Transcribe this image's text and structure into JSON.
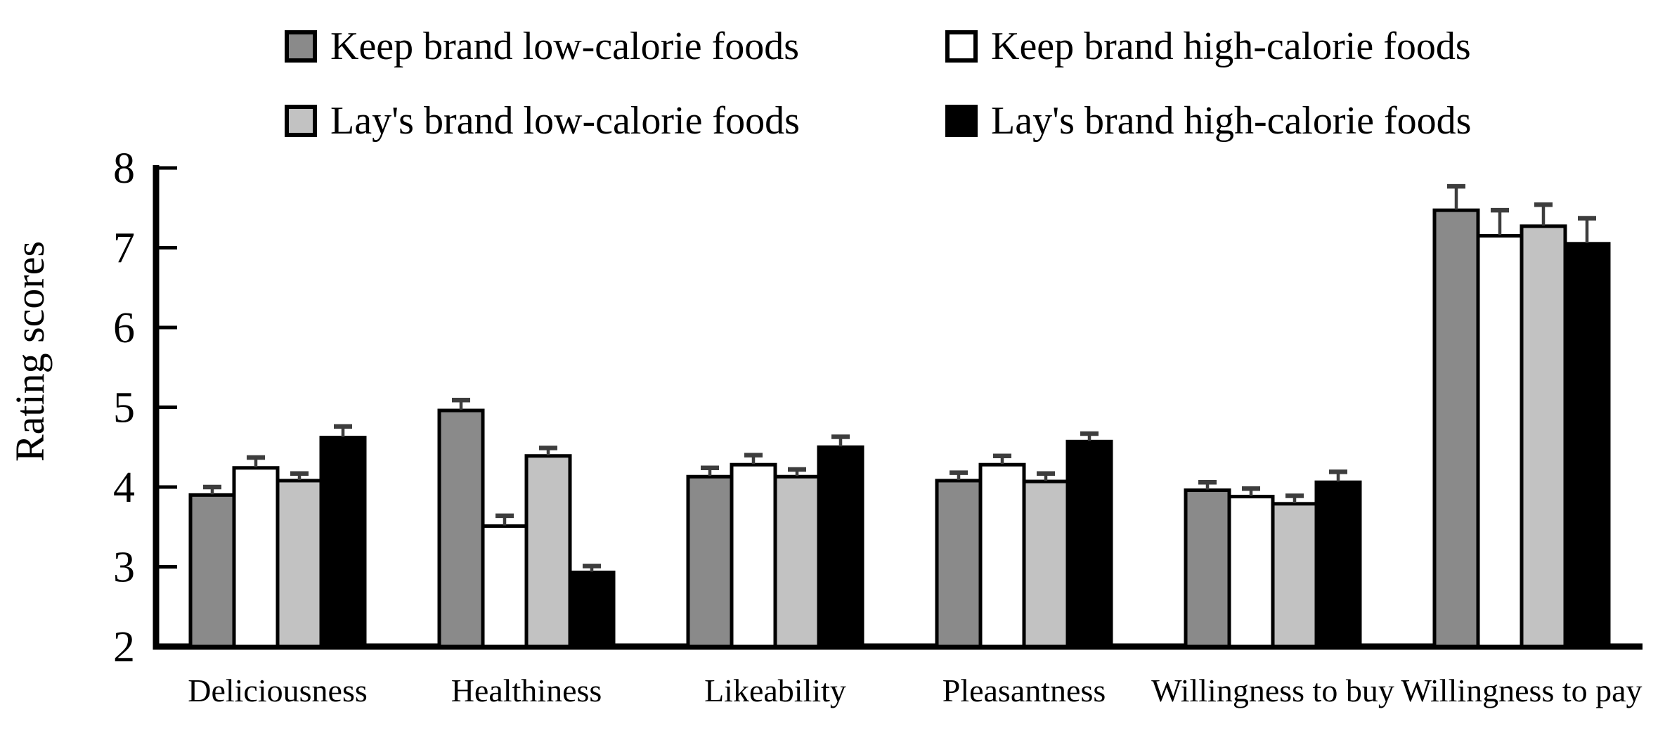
{
  "figure": {
    "background": "#ffffff",
    "axis_color": "#000000",
    "bar_outline_color": "#000000",
    "error_bar_color": "#3d3d3d"
  },
  "chart_data": {
    "type": "bar",
    "title": "",
    "xlabel": "",
    "ylabel": "Rating scores",
    "ylim": [
      2,
      8
    ],
    "yticks": [
      2,
      3,
      4,
      5,
      6,
      7,
      8
    ],
    "grid": false,
    "legend_position": "top",
    "error_bars": "upper whisker with cap",
    "categories": [
      "Deliciousness",
      "Healthiness",
      "Likeability",
      "Pleasantness",
      "Willingness to buy",
      "Willingness to pay"
    ],
    "series": [
      {
        "name": "Keep brand low-calorie foods",
        "color": "#8a8a8a",
        "values": [
          3.9,
          4.96,
          4.13,
          4.08,
          3.96,
          7.47
        ],
        "errors": [
          0.1,
          0.13,
          0.11,
          0.1,
          0.1,
          0.3
        ]
      },
      {
        "name": "Keep brand high-calorie foods",
        "color": "#ffffff",
        "values": [
          4.24,
          3.51,
          4.28,
          4.28,
          3.88,
          7.15
        ],
        "errors": [
          0.13,
          0.13,
          0.12,
          0.11,
          0.1,
          0.32
        ]
      },
      {
        "name": "Lay's brand low-calorie foods",
        "color": "#c2c2c2",
        "values": [
          4.08,
          4.39,
          4.13,
          4.07,
          3.79,
          7.27
        ],
        "errors": [
          0.09,
          0.1,
          0.09,
          0.1,
          0.1,
          0.27
        ]
      },
      {
        "name": "Lay's brand high-calorie foods",
        "color": "#000000",
        "values": [
          4.62,
          2.93,
          4.5,
          4.57,
          4.06,
          7.05
        ],
        "errors": [
          0.14,
          0.08,
          0.13,
          0.1,
          0.13,
          0.32
        ]
      }
    ]
  }
}
